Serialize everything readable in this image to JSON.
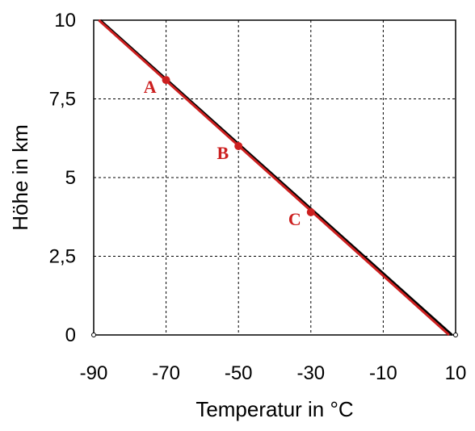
{
  "chart_data": {
    "type": "line",
    "xlabel": "Temperatur in °C",
    "ylabel": "Höhe in km",
    "xlim": [
      -90,
      10
    ],
    "ylim": [
      0,
      10
    ],
    "x_ticks": [
      "-90",
      "-70",
      "-50",
      "-30",
      "-10",
      "10"
    ],
    "y_ticks": [
      "0",
      "2,5",
      "5",
      "7,5",
      "10"
    ],
    "x_tick_values": [
      -90,
      -70,
      -50,
      -30,
      -10,
      10
    ],
    "y_tick_values": [
      0,
      2.5,
      5,
      7.5,
      10
    ],
    "grid": true,
    "series": [
      {
        "color": "#000000",
        "x": [
          -88.2,
          9.0
        ],
        "y": [
          10,
          0
        ]
      },
      {
        "color": "#cc1f1f",
        "x": [
          -88.6,
          8.2
        ],
        "y": [
          10,
          0
        ]
      }
    ],
    "points": [
      {
        "label": "A",
        "x": -70,
        "y": 8.1
      },
      {
        "label": "B",
        "x": -50,
        "y": 6.0
      },
      {
        "label": "C",
        "x": -30,
        "y": 3.9
      }
    ],
    "point_color": "#cc1f1f"
  }
}
